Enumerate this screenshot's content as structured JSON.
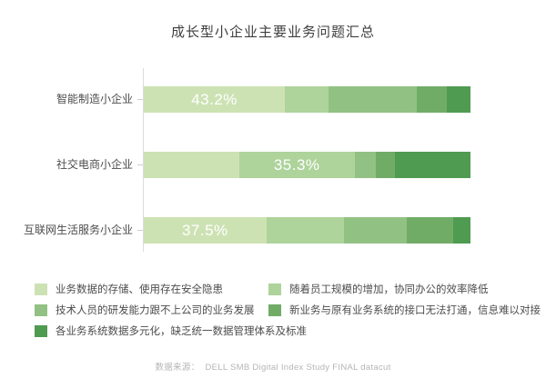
{
  "title": "成长型小企业主要业务问题汇总",
  "colors": [
    "#cde2b3",
    "#aed39b",
    "#92c184",
    "#71ac67",
    "#4f9b51"
  ],
  "chart_data": {
    "type": "bar",
    "stacked": true,
    "orientation": "horizontal",
    "unit": "%",
    "title": "成长型小企业主要业务问题汇总",
    "categories": [
      "智能制造小企业",
      "社交电商小企业",
      "互联网生活服务小企业"
    ],
    "series": [
      {
        "name": "业务数据的存储、使用存在安全隐患",
        "values": [
          43.2,
          29.2,
          37.5
        ]
      },
      {
        "name": "随着员工规模的增加，协同办公的效率降低",
        "values": [
          13.4,
          35.3,
          23.7
        ]
      },
      {
        "name": "技术人员的研发能力跟不上公司的业务发展",
        "values": [
          27.1,
          6.6,
          19.3
        ]
      },
      {
        "name": "新业务与原有业务系统的接口无法打通，信息难以对接",
        "values": [
          9.2,
          5.7,
          14.2
        ]
      },
      {
        "name": "各业务系统数据多元化，缺乏统一数据管理体系及标准",
        "values": [
          7.1,
          23.2,
          5.3
        ]
      }
    ],
    "data_labels": [
      {
        "bar": 0,
        "segment": 0,
        "text": "43.2%"
      },
      {
        "bar": 1,
        "segment": 1,
        "text": "35.3%"
      },
      {
        "bar": 2,
        "segment": 0,
        "text": "37.5%"
      }
    ],
    "xlim": [
      0,
      100
    ],
    "grid": false,
    "legend_position": "bottom"
  },
  "footer": {
    "source_label": "数据来源：",
    "source_text": "DELL SMB Digital Index Study FINAL datacut"
  }
}
